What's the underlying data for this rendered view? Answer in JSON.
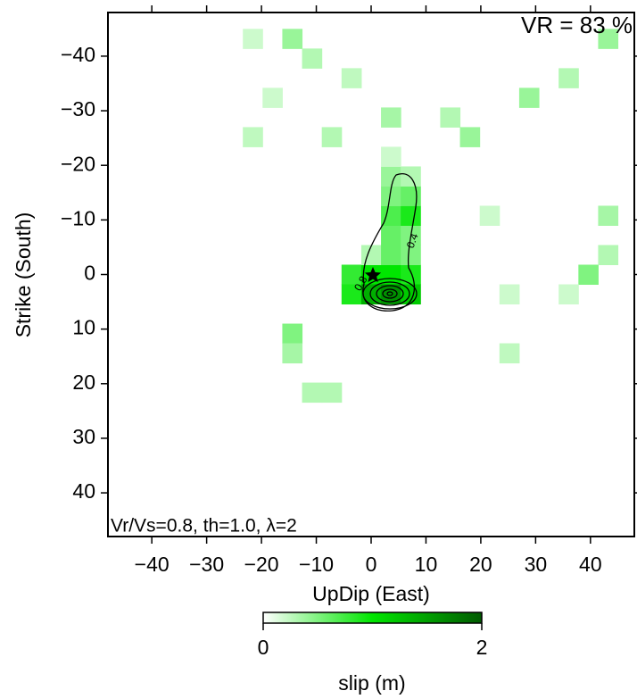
{
  "chart_data": {
    "type": "heatmap",
    "annotations": [
      "VR = 83 %",
      "Vr/Vs=0.8, th=1.0, λ=2"
    ],
    "contour_labels": [
      "0.4",
      "0.8"
    ],
    "xlabel": "UpDip (East)",
    "ylabel": "Strike (South)",
    "xlim": [
      -48,
      48
    ],
    "ylim": [
      -48,
      48
    ],
    "xticks": [
      {
        "value": -40,
        "label": "−40"
      },
      {
        "value": -30,
        "label": "−30"
      },
      {
        "value": -20,
        "label": "−20"
      },
      {
        "value": -10,
        "label": "−10"
      },
      0,
      10,
      20,
      30,
      40
    ],
    "yticks": [
      {
        "value": -40,
        "label": "−40"
      },
      {
        "value": -30,
        "label": "−30"
      },
      {
        "value": -20,
        "label": "−20"
      },
      {
        "value": -10,
        "label": "−10"
      },
      0,
      10,
      20,
      30,
      40
    ],
    "x": [
      -3.6,
      0,
      3.6,
      7.2,
      -3.6,
      0,
      3.6,
      7.2,
      0,
      3.6,
      7.2,
      3.6,
      7.2,
      3.6,
      7.2,
      3.6,
      7.2,
      3.6,
      7.2,
      3.6,
      -14.4,
      -14.4,
      -10.8,
      -7.2,
      -14.4,
      -10.8,
      -21.6,
      3.6,
      14.4,
      18,
      43.2,
      43.2,
      39.6,
      43.2,
      28.8,
      36,
      -21.6,
      -7.2,
      21.6,
      25.2,
      25.2,
      36,
      -18,
      -3.6
    ],
    "y": [
      0,
      0,
      0,
      0,
      3.6,
      3.6,
      3.6,
      3.6,
      -3.6,
      -3.6,
      -3.6,
      -7.2,
      -7.2,
      -10.8,
      -10.8,
      -14.4,
      -14.4,
      -18,
      -18,
      -21.6,
      10.8,
      14.4,
      21.6,
      21.6,
      -43.2,
      -39.6,
      -43.2,
      -28.8,
      -28.8,
      -25.2,
      -43.2,
      -10.8,
      0,
      -3.6,
      -32.4,
      -36,
      -25.2,
      -25.2,
      -10.8,
      3.6,
      14.4,
      3.6,
      -32.4,
      -36
    ],
    "values": [
      0.8,
      1.0,
      1.0,
      0.9,
      0.9,
      1.4,
      1.6,
      1.2,
      0.3,
      0.6,
      0.5,
      0.6,
      0.5,
      0.7,
      0.9,
      0.5,
      0.6,
      0.4,
      0.3,
      0.2,
      0.5,
      0.35,
      0.3,
      0.3,
      0.4,
      0.3,
      0.2,
      0.35,
      0.3,
      0.4,
      0.4,
      0.35,
      0.5,
      0.3,
      0.4,
      0.3,
      0.25,
      0.3,
      0.2,
      0.2,
      0.25,
      0.2,
      0.2,
      0.25
    ],
    "colormap": [
      "#ffffff",
      "#00e600",
      "#005a00"
    ],
    "colorbar": {
      "label": "slip (m)",
      "lim": [
        0,
        2
      ],
      "ticks": [
        0,
        2
      ]
    }
  }
}
